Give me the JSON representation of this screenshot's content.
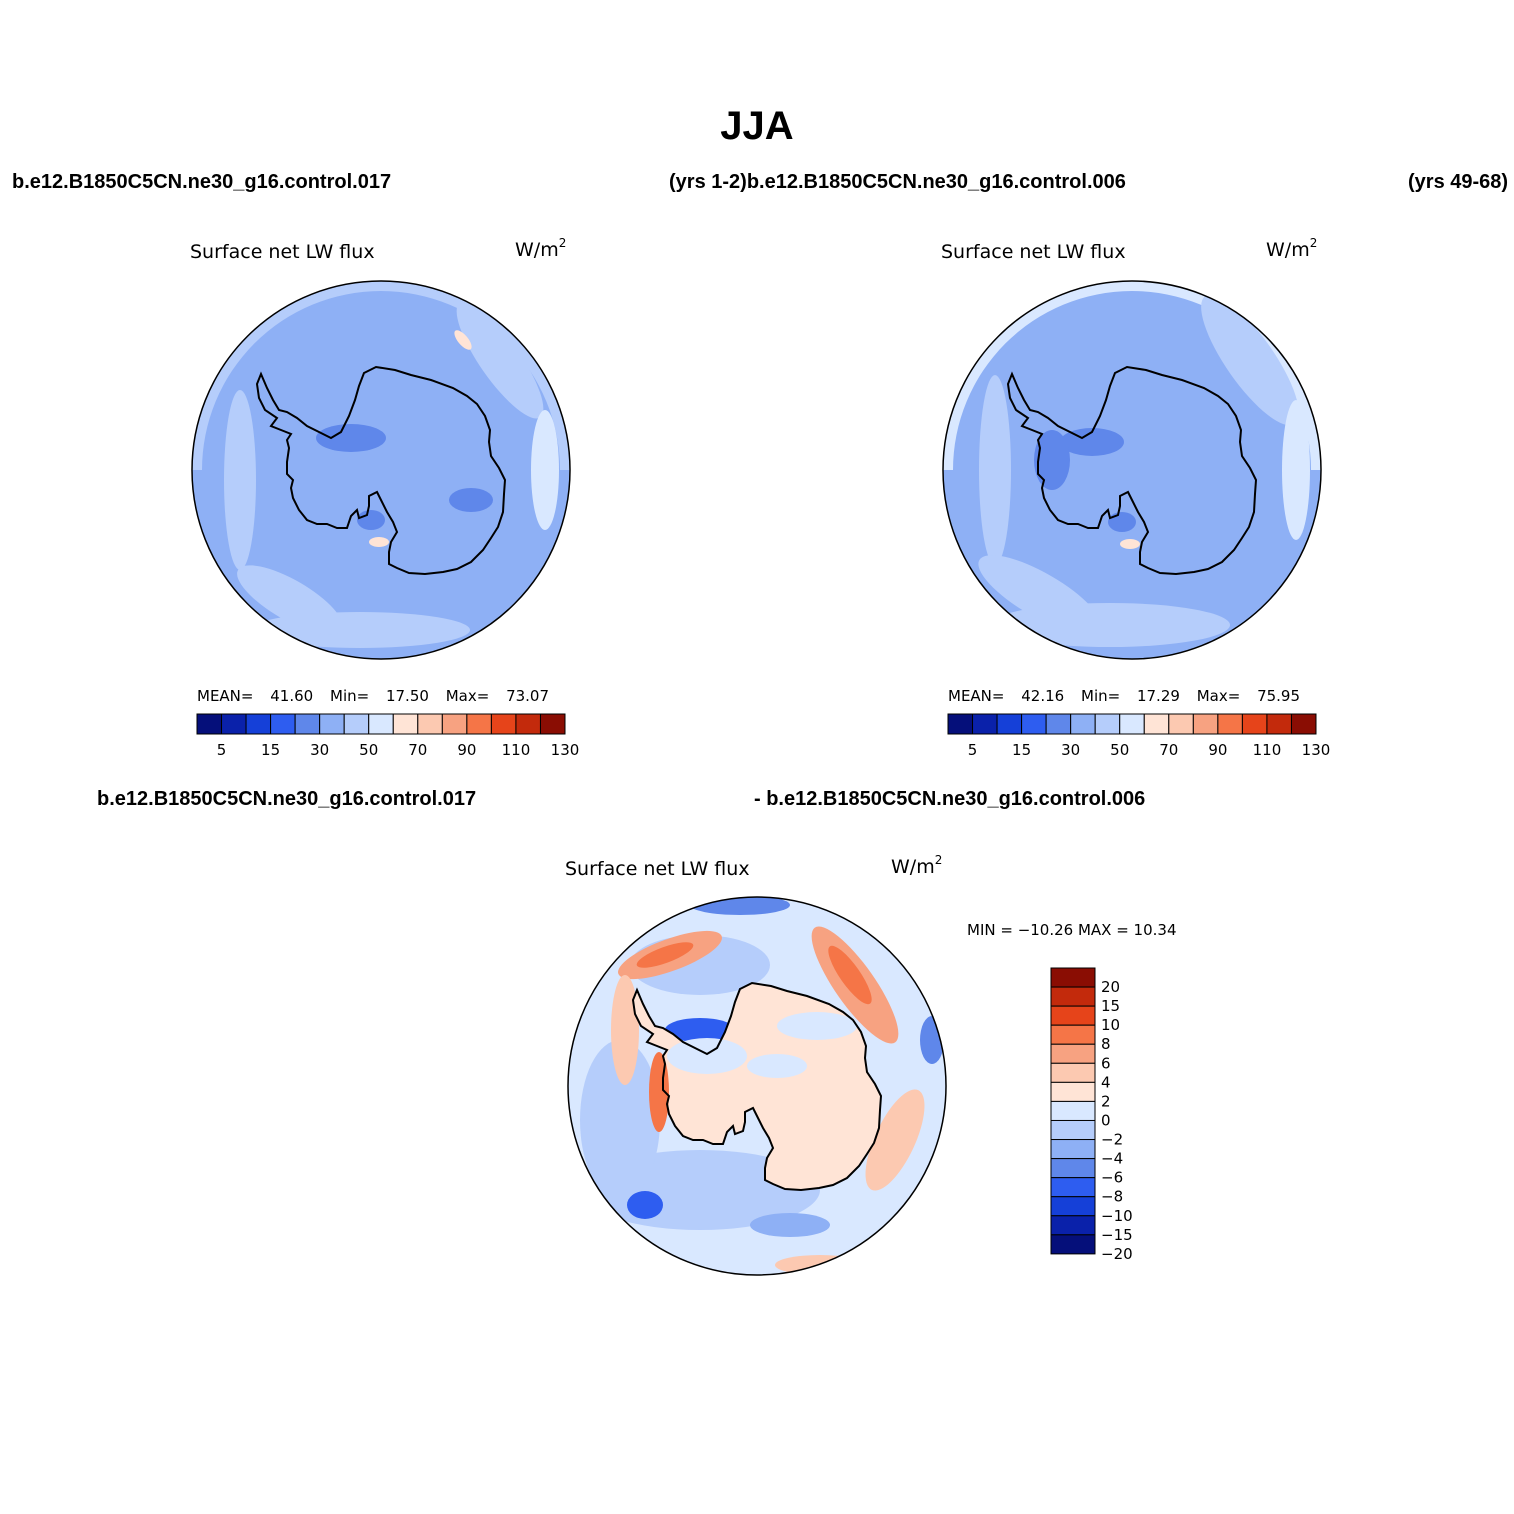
{
  "title": "JJA",
  "header": {
    "left_case": "b.e12.B1850C5CN.ne30_g16.control.017",
    "mid_text": "(yrs 1-2)b.e12.B1850C5CN.ne30_g16.control.006",
    "right_text": "(yrs 49-68)"
  },
  "diff_header": {
    "left": "b.e12.B1850C5CN.ne30_g16.control.017",
    "right": "- b.e12.B1850C5CN.ne30_g16.control.006"
  },
  "colors": {
    "abs_palette": [
      "#050f7a",
      "#0a21aa",
      "#1540d8",
      "#2e5df0",
      "#5f87ea",
      "#8eb0f5",
      "#b5cdfb",
      "#d9e8ff",
      "#ffe4d6",
      "#fcc9b1",
      "#f7a281",
      "#f57547",
      "#e6441a",
      "#c32a0c",
      "#8a0d03"
    ],
    "diff_palette": [
      "#050f7a",
      "#0a21aa",
      "#1540d8",
      "#2e5df0",
      "#5f87ea",
      "#8eb0f5",
      "#b5cdfb",
      "#d9e8ff",
      "#ffe4d6",
      "#fcc9b1",
      "#f7a281",
      "#f57547",
      "#e6441a",
      "#c32a0c",
      "#8a0d03"
    ],
    "coast": "#000000"
  },
  "chart_data": [
    {
      "type": "heatmap",
      "projection": "south polar stereographic",
      "title": "Surface net LW flux",
      "units": "W/m2",
      "units_base": "W/m",
      "units_exp": "2",
      "mean_label": "MEAN=",
      "min_label": "Min=",
      "max_label": "Max=",
      "mean": "41.60",
      "min": "17.50",
      "max": "73.07",
      "colorbar_levels": [
        "5",
        "15",
        "30",
        "50",
        "70",
        "90",
        "110",
        "130"
      ]
    },
    {
      "type": "heatmap",
      "projection": "south polar stereographic",
      "title": "Surface net LW flux",
      "units": "W/m2",
      "units_base": "W/m",
      "units_exp": "2",
      "mean_label": "MEAN=",
      "min_label": "Min=",
      "max_label": "Max=",
      "mean": "42.16",
      "min": "17.29",
      "max": "75.95",
      "colorbar_levels": [
        "5",
        "15",
        "30",
        "50",
        "70",
        "90",
        "110",
        "130"
      ]
    },
    {
      "type": "heatmap",
      "projection": "south polar stereographic",
      "title": "Surface net LW flux",
      "units": "W/m2",
      "units_base": "W/m",
      "units_exp": "2",
      "minmax_text": "MIN = −10.26 MAX =   10.34",
      "min": -10.26,
      "max": 10.34,
      "colorbar_levels": [
        "20",
        "15",
        "10",
        "8",
        "6",
        "4",
        "2",
        "0",
        "−2",
        "−4",
        "−6",
        "−8",
        "−10",
        "−15",
        "−20"
      ]
    }
  ]
}
